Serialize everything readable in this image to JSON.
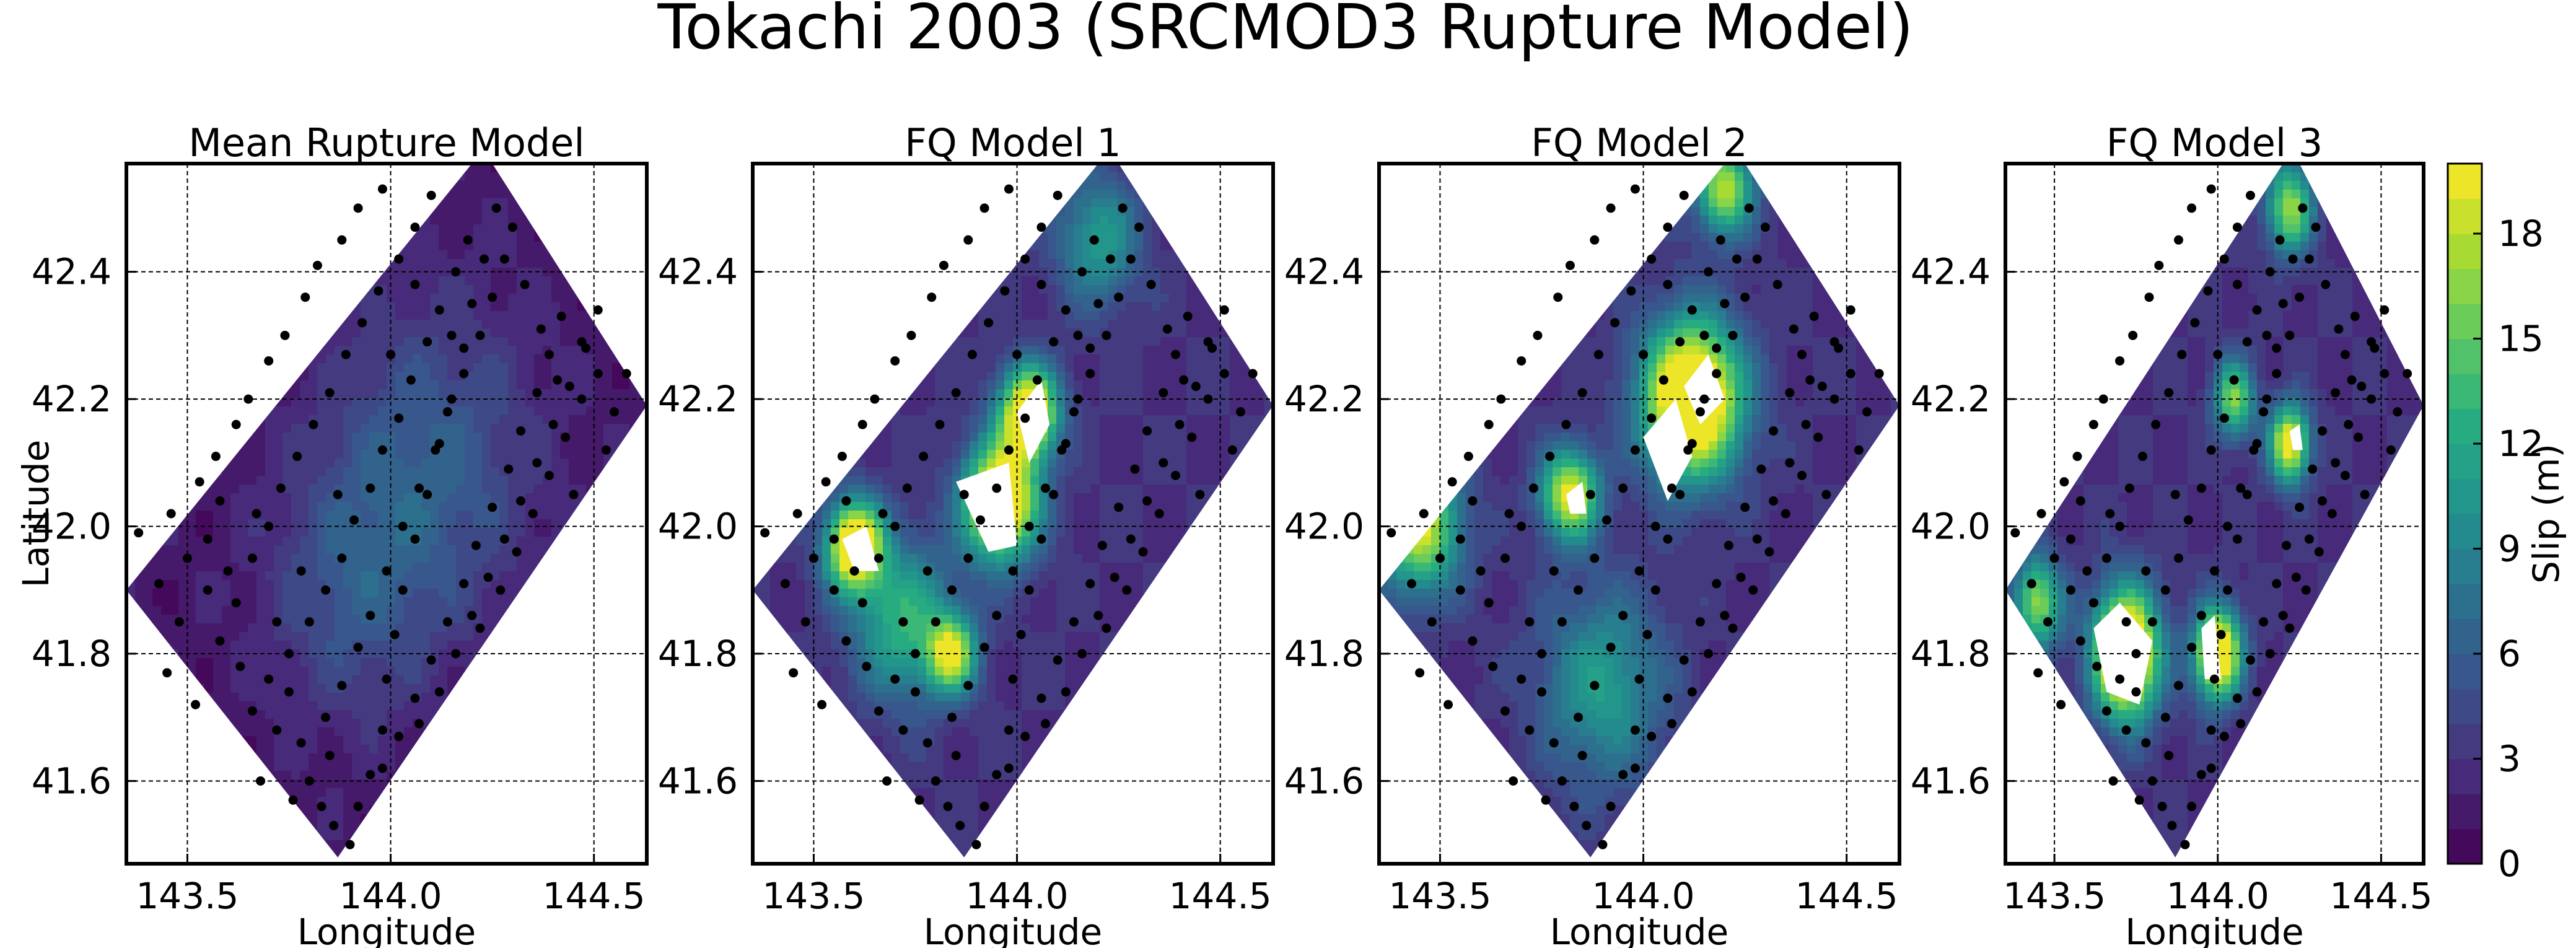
{
  "figure": {
    "title": "Tokachi 2003 (SRCMOD3 Rupture Model)"
  },
  "colorbar": {
    "label": "Slip (m)",
    "ticks": [
      "0",
      "3",
      "6",
      "9",
      "12",
      "15",
      "18"
    ],
    "range": [
      0,
      20
    ],
    "levels": 20,
    "colormap": "viridis"
  },
  "chart_data": [
    {
      "type": "heatmap",
      "title": "Mean Rupture Model",
      "xlabel": "Longitude",
      "ylabel": "Latitude",
      "xlim": [
        143.35,
        144.63
      ],
      "ylim": [
        41.47,
        42.57
      ],
      "xticks": [
        "143.5",
        "144.0",
        "144.5"
      ],
      "yticks": [
        "41.6",
        "41.8",
        "42.0",
        "42.2",
        "42.4"
      ],
      "grid": true,
      "slip_hotspots": [
        {
          "lon": 144.1,
          "lat": 42.1,
          "slip": 4.5,
          "spread": 0.25
        },
        {
          "lon": 143.9,
          "lat": 41.9,
          "slip": 3.5,
          "spread": 0.2
        }
      ],
      "base_slip": 1.5,
      "white_regions": []
    },
    {
      "type": "heatmap",
      "title": "FQ Model 1",
      "xlabel": "Longitude",
      "ylabel": "",
      "xlim": [
        143.35,
        144.63
      ],
      "ylim": [
        41.47,
        42.57
      ],
      "xticks": [
        "143.5",
        "144.0",
        "144.5"
      ],
      "yticks": [
        "41.6",
        "41.8",
        "42.0",
        "42.2",
        "42.4"
      ],
      "grid": true,
      "slip_hotspots": [
        {
          "lon": 143.96,
          "lat": 42.04,
          "slip": 22,
          "spread": 0.09
        },
        {
          "lon": 144.03,
          "lat": 42.18,
          "slip": 21,
          "spread": 0.07
        },
        {
          "lon": 143.6,
          "lat": 41.97,
          "slip": 21,
          "spread": 0.07
        },
        {
          "lon": 143.84,
          "lat": 41.8,
          "slip": 15,
          "spread": 0.06
        },
        {
          "lon": 143.72,
          "lat": 41.85,
          "slip": 10,
          "spread": 0.12
        },
        {
          "lon": 144.2,
          "lat": 42.45,
          "slip": 8,
          "spread": 0.1
        }
      ],
      "base_slip": 3,
      "white_regions": [
        [
          [
            143.85,
            42.07
          ],
          [
            143.98,
            42.1
          ],
          [
            144.0,
            41.97
          ],
          [
            143.93,
            41.96
          ]
        ],
        [
          [
            144.0,
            42.18
          ],
          [
            144.06,
            42.23
          ],
          [
            144.08,
            42.16
          ],
          [
            144.03,
            42.1
          ]
        ],
        [
          [
            143.57,
            41.98
          ],
          [
            143.63,
            42.0
          ],
          [
            143.66,
            41.93
          ],
          [
            143.6,
            41.93
          ]
        ]
      ]
    },
    {
      "type": "heatmap",
      "title": "FQ Model 2",
      "xlabel": "Longitude",
      "ylabel": "",
      "xlim": [
        143.35,
        144.63
      ],
      "ylim": [
        41.47,
        42.57
      ],
      "xticks": [
        "143.5",
        "144.0",
        "144.5"
      ],
      "yticks": [
        "41.6",
        "41.8",
        "42.0",
        "42.2",
        "42.4"
      ],
      "grid": true,
      "slip_hotspots": [
        {
          "lon": 144.12,
          "lat": 42.2,
          "slip": 24,
          "spread": 0.12
        },
        {
          "lon": 143.82,
          "lat": 42.05,
          "slip": 17,
          "spread": 0.07
        },
        {
          "lon": 143.45,
          "lat": 42.0,
          "slip": 16,
          "spread": 0.1
        },
        {
          "lon": 144.2,
          "lat": 42.53,
          "slip": 15,
          "spread": 0.07
        },
        {
          "lon": 143.9,
          "lat": 41.75,
          "slip": 8,
          "spread": 0.15
        }
      ],
      "base_slip": 3,
      "white_regions": [
        [
          [
            144.0,
            42.14
          ],
          [
            144.08,
            42.2
          ],
          [
            144.12,
            42.11
          ],
          [
            144.06,
            42.04
          ]
        ],
        [
          [
            144.1,
            42.22
          ],
          [
            144.16,
            42.27
          ],
          [
            144.2,
            42.2
          ],
          [
            144.14,
            42.16
          ]
        ],
        [
          [
            143.81,
            42.05
          ],
          [
            143.85,
            42.07
          ],
          [
            143.86,
            42.02
          ],
          [
            143.82,
            42.02
          ]
        ]
      ]
    },
    {
      "type": "heatmap",
      "title": "FQ Model 3",
      "xlabel": "Longitude",
      "ylabel": "",
      "xlim": [
        143.35,
        144.63
      ],
      "ylim": [
        41.47,
        42.57
      ],
      "xticks": [
        "143.5",
        "144.0",
        "144.5"
      ],
      "yticks": [
        "41.6",
        "41.8",
        "42.0",
        "42.2",
        "42.4"
      ],
      "grid": true,
      "slip_hotspots": [
        {
          "lon": 143.72,
          "lat": 41.8,
          "slip": 24,
          "spread": 0.1
        },
        {
          "lon": 144.0,
          "lat": 41.8,
          "slip": 22,
          "spread": 0.07
        },
        {
          "lon": 144.22,
          "lat": 42.13,
          "slip": 18,
          "spread": 0.06
        },
        {
          "lon": 144.05,
          "lat": 42.2,
          "slip": 13,
          "spread": 0.06
        },
        {
          "lon": 144.22,
          "lat": 42.5,
          "slip": 14,
          "spread": 0.07
        },
        {
          "lon": 143.45,
          "lat": 41.88,
          "slip": 14,
          "spread": 0.07
        }
      ],
      "base_slip": 3,
      "white_regions": [
        [
          [
            143.62,
            41.84
          ],
          [
            143.7,
            41.88
          ],
          [
            143.8,
            41.82
          ],
          [
            143.76,
            41.72
          ],
          [
            143.66,
            41.74
          ]
        ],
        [
          [
            143.95,
            41.84
          ],
          [
            143.99,
            41.86
          ],
          [
            144.01,
            41.76
          ],
          [
            143.96,
            41.76
          ]
        ],
        [
          [
            144.22,
            42.15
          ],
          [
            144.25,
            42.16
          ],
          [
            144.26,
            42.12
          ],
          [
            144.23,
            42.12
          ]
        ]
      ]
    }
  ],
  "fault_outline": [
    [
      143.35,
      41.9
    ],
    [
      143.87,
      41.48
    ],
    [
      144.63,
      42.19
    ],
    [
      144.25,
      42.57
    ],
    [
      144.2,
      42.57
    ]
  ],
  "subfault_points": [
    [
      143.38,
      41.99
    ],
    [
      143.43,
      41.91
    ],
    [
      143.48,
      41.85
    ],
    [
      143.55,
      41.98
    ],
    [
      143.58,
      42.04
    ],
    [
      143.6,
      41.93
    ],
    [
      143.63,
      41.78
    ],
    [
      143.66,
      41.71
    ],
    [
      143.7,
      41.76
    ],
    [
      143.72,
      41.85
    ],
    [
      143.75,
      41.74
    ],
    [
      143.78,
      41.66
    ],
    [
      143.8,
      41.6
    ],
    [
      143.83,
      41.56
    ],
    [
      143.86,
      41.53
    ],
    [
      143.9,
      41.5
    ],
    [
      143.92,
      41.56
    ],
    [
      143.95,
      41.61
    ],
    [
      143.98,
      41.68
    ],
    [
      143.99,
      41.76
    ],
    [
      144.01,
      41.83
    ],
    [
      144.03,
      41.9
    ],
    [
      144.06,
      41.98
    ],
    [
      144.09,
      42.05
    ],
    [
      144.12,
      42.13
    ],
    [
      144.15,
      42.2
    ],
    [
      144.18,
      42.28
    ],
    [
      144.2,
      42.35
    ],
    [
      144.23,
      42.42
    ],
    [
      144.26,
      42.5
    ],
    [
      143.5,
      41.95
    ],
    [
      143.53,
      42.07
    ],
    [
      143.57,
      42.11
    ],
    [
      143.62,
      42.16
    ],
    [
      143.65,
      42.2
    ],
    [
      143.7,
      42.26
    ],
    [
      143.74,
      42.3
    ],
    [
      143.79,
      42.36
    ],
    [
      143.82,
      42.41
    ],
    [
      143.88,
      42.45
    ],
    [
      143.92,
      42.5
    ],
    [
      143.98,
      42.53
    ],
    [
      143.62,
      41.88
    ],
    [
      143.66,
      41.95
    ],
    [
      143.7,
      42.0
    ],
    [
      143.73,
      42.06
    ],
    [
      143.77,
      42.11
    ],
    [
      143.81,
      42.16
    ],
    [
      143.85,
      42.21
    ],
    [
      143.89,
      42.27
    ],
    [
      143.93,
      42.32
    ],
    [
      143.97,
      42.37
    ],
    [
      144.02,
      42.42
    ],
    [
      144.06,
      42.47
    ],
    [
      144.1,
      42.52
    ],
    [
      143.72,
      41.68
    ],
    [
      143.75,
      41.8
    ],
    [
      143.8,
      41.85
    ],
    [
      143.84,
      41.9
    ],
    [
      143.88,
      41.95
    ],
    [
      143.91,
      42.01
    ],
    [
      143.95,
      42.06
    ],
    [
      143.98,
      42.12
    ],
    [
      144.02,
      42.17
    ],
    [
      144.05,
      42.23
    ],
    [
      144.09,
      42.29
    ],
    [
      144.12,
      42.34
    ],
    [
      144.16,
      42.4
    ],
    [
      144.19,
      42.45
    ],
    [
      143.84,
      41.7
    ],
    [
      143.88,
      41.75
    ],
    [
      143.92,
      41.81
    ],
    [
      143.95,
      41.86
    ],
    [
      143.99,
      41.93
    ],
    [
      144.03,
      42.0
    ],
    [
      144.07,
      42.06
    ],
    [
      144.11,
      42.12
    ],
    [
      144.14,
      42.18
    ],
    [
      144.18,
      42.24
    ],
    [
      144.22,
      42.3
    ],
    [
      144.25,
      42.36
    ],
    [
      144.28,
      42.42
    ],
    [
      144.3,
      42.47
    ],
    [
      143.98,
      41.62
    ],
    [
      144.02,
      41.67
    ],
    [
      144.06,
      41.73
    ],
    [
      144.1,
      41.79
    ],
    [
      144.14,
      41.85
    ],
    [
      144.18,
      41.91
    ],
    [
      144.21,
      41.97
    ],
    [
      144.25,
      42.03
    ],
    [
      144.29,
      42.09
    ],
    [
      144.32,
      42.15
    ],
    [
      144.36,
      42.21
    ],
    [
      144.39,
      42.27
    ],
    [
      144.42,
      42.33
    ],
    [
      144.07,
      41.69
    ],
    [
      144.12,
      41.74
    ],
    [
      144.16,
      41.8
    ],
    [
      144.2,
      41.86
    ],
    [
      144.24,
      41.92
    ],
    [
      144.28,
      41.98
    ],
    [
      144.32,
      42.04
    ],
    [
      144.36,
      42.1
    ],
    [
      144.4,
      42.16
    ],
    [
      144.44,
      42.22
    ],
    [
      144.48,
      42.28
    ],
    [
      144.51,
      42.34
    ],
    [
      144.22,
      41.84
    ],
    [
      144.27,
      41.9
    ],
    [
      144.31,
      41.96
    ],
    [
      144.35,
      42.02
    ],
    [
      144.39,
      42.08
    ],
    [
      144.43,
      42.14
    ],
    [
      144.47,
      42.2
    ],
    [
      144.51,
      42.24
    ],
    [
      144.55,
      42.18
    ],
    [
      144.58,
      42.24
    ],
    [
      144.53,
      42.12
    ],
    [
      144.45,
      42.05
    ],
    [
      143.45,
      41.77
    ],
    [
      143.52,
      41.72
    ],
    [
      143.58,
      41.82
    ],
    [
      143.68,
      41.6
    ],
    [
      143.76,
      41.57
    ],
    [
      143.85,
      41.64
    ],
    [
      144.33,
      42.38
    ],
    [
      144.37,
      42.31
    ],
    [
      144.47,
      42.29
    ],
    [
      144.41,
      42.23
    ],
    [
      144.15,
      42.3
    ],
    [
      143.87,
      42.05
    ],
    [
      143.78,
      41.93
    ],
    [
      143.67,
      42.02
    ],
    [
      143.55,
      41.9
    ],
    [
      143.46,
      42.02
    ],
    [
      144.0,
      42.27
    ],
    [
      144.06,
      42.38
    ]
  ]
}
